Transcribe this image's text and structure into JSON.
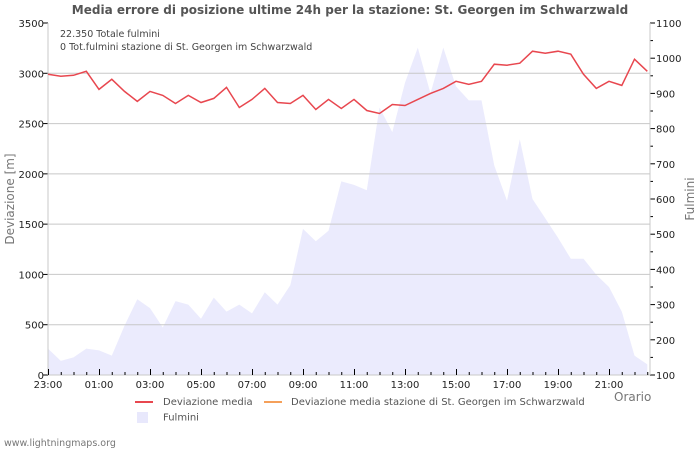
{
  "header": {
    "title": "Media errore di posizione ultime 24h per la stazione: St. Georgen im Schwarzwald"
  },
  "info": {
    "total_strikes": "22.350 Totale fulmini",
    "station_strikes": "0 Tot.fulmini stazione di St. Georgen im Schwarzwald"
  },
  "axes": {
    "left_title": "Deviazione  [m]",
    "right_title": "Fulmini",
    "x_title": "Orario",
    "left_ticks": [
      "0",
      "500",
      "1000",
      "1500",
      "2000",
      "2500",
      "3000",
      "3500"
    ],
    "right_ticks": [
      "100",
      "200",
      "300",
      "400",
      "500",
      "600",
      "700",
      "800",
      "900",
      "1000",
      "1100"
    ],
    "x_ticks": [
      "23:00",
      "01:00",
      "03:00",
      "05:00",
      "07:00",
      "09:00",
      "11:00",
      "13:00",
      "15:00",
      "17:00",
      "19:00",
      "21:00"
    ]
  },
  "legend": {
    "items": [
      {
        "label": "Deviazione media",
        "color": "#e8474f"
      },
      {
        "label": "Deviazione media stazione di St. Georgen im Schwarzwald",
        "color": "#f5a05a"
      },
      {
        "label": "Fulmini",
        "color": "#e8e8fc"
      }
    ]
  },
  "footer": {
    "site": "www.lightningmaps.org"
  },
  "colors": {
    "line": "#e8474f",
    "area": "#ebebfd",
    "grid": "#c8c8c8"
  },
  "chart_data": {
    "type": "line",
    "title": "Media errore di posizione ultime 24h per la stazione: St. Georgen im Schwarzwald",
    "xlabel": "Orario",
    "ylabel": "Deviazione  [m]",
    "y2label": "Fulmini",
    "ylim": [
      0,
      3500
    ],
    "y2lim": [
      100,
      1100
    ],
    "grid": true,
    "legend_position": "bottom",
    "x": [
      "23:00",
      "23:30",
      "00:00",
      "00:30",
      "01:00",
      "01:30",
      "02:00",
      "02:30",
      "03:00",
      "03:30",
      "04:00",
      "04:30",
      "05:00",
      "05:30",
      "06:00",
      "06:30",
      "07:00",
      "07:30",
      "08:00",
      "08:30",
      "09:00",
      "09:30",
      "10:00",
      "10:30",
      "11:00",
      "11:30",
      "12:00",
      "12:30",
      "13:00",
      "13:30",
      "14:00",
      "14:30",
      "15:00",
      "15:30",
      "16:00",
      "16:30",
      "17:00",
      "17:30",
      "18:00",
      "18:30",
      "19:00",
      "19:30",
      "20:00",
      "20:30",
      "21:00",
      "21:30",
      "22:00",
      "22:30"
    ],
    "series": [
      {
        "name": "Deviazione media",
        "axis": "left",
        "type": "line",
        "values": [
          2990,
          2970,
          2980,
          3020,
          2840,
          2940,
          2820,
          2720,
          2820,
          2780,
          2700,
          2780,
          2710,
          2750,
          2860,
          2660,
          2740,
          2850,
          2710,
          2700,
          2780,
          2640,
          2740,
          2650,
          2740,
          2630,
          2600,
          2690,
          2680,
          2740,
          2800,
          2850,
          2920,
          2890,
          2920,
          3090,
          3080,
          3100,
          3220,
          3200,
          3220,
          3190,
          2990,
          2850,
          2920,
          2880,
          3140,
          3020
        ]
      },
      {
        "name": "Deviazione media stazione di St. Georgen im Schwarzwald",
        "axis": "left",
        "type": "line",
        "values": []
      },
      {
        "name": "Fulmini",
        "axis": "right",
        "type": "area",
        "values": [
          175,
          140,
          150,
          175,
          170,
          155,
          240,
          315,
          290,
          235,
          310,
          300,
          260,
          320,
          280,
          300,
          275,
          335,
          300,
          355,
          515,
          480,
          510,
          650,
          640,
          625,
          860,
          790,
          930,
          1030,
          900,
          1030,
          920,
          880,
          880,
          695,
          595,
          770,
          600,
          545,
          490,
          430,
          430,
          385,
          350,
          280,
          155,
          130
        ]
      }
    ]
  }
}
